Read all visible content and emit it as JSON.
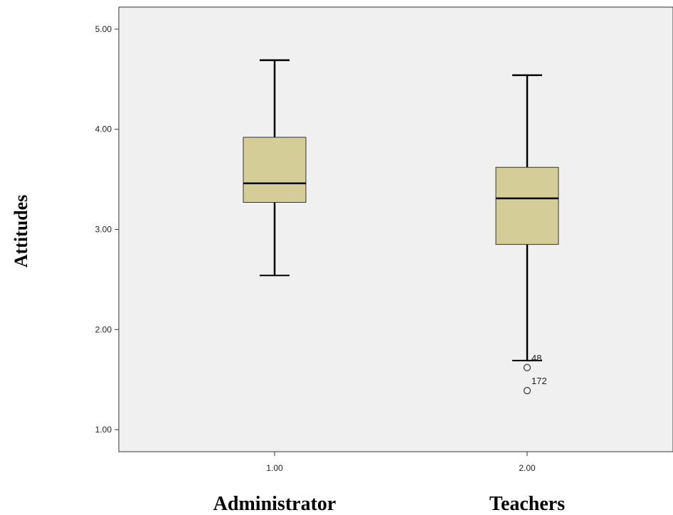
{
  "chart_data": {
    "type": "boxplot",
    "ylabel": "Attitudes",
    "ylim": [
      0.78,
      5.22
    ],
    "y_ticks": [
      "1.00",
      "2.00",
      "3.00",
      "4.00",
      "5.00"
    ],
    "y_tick_values": [
      1,
      2,
      3,
      4,
      5
    ],
    "x_ticks": [
      "1.00",
      "2.00"
    ],
    "categories": [
      "Administrator",
      "Teachers"
    ],
    "groups": [
      {
        "x_tick": "1.00",
        "label": "Administrator",
        "whisker_low": 2.54,
        "q1": 3.27,
        "median": 3.46,
        "q3": 3.92,
        "whisker_high": 4.69,
        "outliers": []
      },
      {
        "x_tick": "2.00",
        "label": "Teachers",
        "whisker_low": 1.69,
        "q1": 2.85,
        "median": 3.31,
        "q3": 3.62,
        "whisker_high": 4.54,
        "outliers": [
          {
            "value": 1.62,
            "label": "48"
          },
          {
            "value": 1.39,
            "label": "172"
          }
        ]
      }
    ],
    "box_color": "#d4cd98",
    "plot_background": "#f0f0f0",
    "grid": false
  }
}
